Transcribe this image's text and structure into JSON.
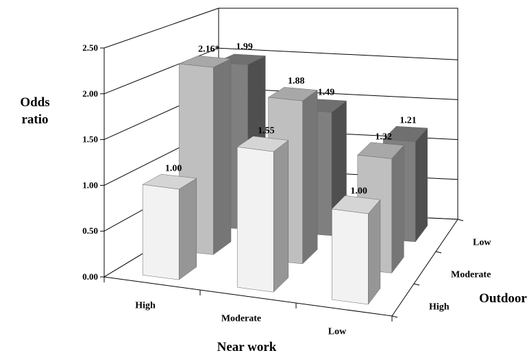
{
  "chart_data": {
    "type": "bar",
    "variant": "3d-column",
    "ylabel": [
      "Odds",
      "ratio"
    ],
    "xlabel": "Near work",
    "zlabel": "Outdoor",
    "ylim": [
      0,
      2.5
    ],
    "yticks": [
      "0.00",
      "0.50",
      "1.00",
      "1.50",
      "2.00",
      "2.50"
    ],
    "categories": [
      "High",
      "Moderate",
      "Low"
    ],
    "series_categories": [
      "High",
      "Moderate",
      "Low"
    ],
    "grid": true,
    "series": [
      {
        "values": [
          1.0,
          1.55,
          1.0
        ],
        "labels": [
          "1.00",
          "1.55",
          "1.00"
        ],
        "color": "#f2f2f2"
      },
      {
        "values": [
          2.16,
          1.88,
          1.32
        ],
        "labels": [
          "2.16*",
          "1.88",
          "1.32"
        ],
        "color": "#bfbfbf"
      },
      {
        "values": [
          1.99,
          1.49,
          1.21
        ],
        "labels": [
          "1.99",
          "1.49",
          "1.21"
        ],
        "color": "#7f7f7f"
      }
    ]
  }
}
